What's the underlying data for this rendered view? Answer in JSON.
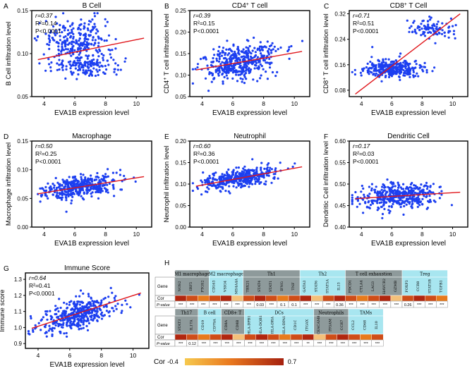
{
  "x_label": "EVA1B expression level",
  "x_ticks": [
    "4",
    "6",
    "8",
    "10"
  ],
  "panels": [
    {
      "letter": "A",
      "title": "B Cell",
      "title_sup": "",
      "ylabel": "B Cell infiltration level",
      "ylabel_sup": "",
      "stats": {
        "r": "r=0.37",
        "r2": "R²=0.14",
        "p": "P<0.0001"
      },
      "y_ticks": [
        "0.05",
        "0.10",
        "0.15"
      ],
      "data": {
        "xmin": 3.2,
        "xmax": 11,
        "ymin": 0.05,
        "ymax": 0.15,
        "cx": [
          6.2,
          6.6
        ],
        "cy": [
          0.115,
          0.085
        ],
        "sx": [
          1.1,
          1.1
        ],
        "sy": [
          0.012,
          0.007
        ],
        "frac": [
          0.65,
          0.35
        ],
        "fit": [
          0.093,
          0.118
        ]
      }
    },
    {
      "letter": "B",
      "title": "CD4",
      "title_sup": "+",
      "title_after": " T cell",
      "ylabel": "CD4",
      "ylabel_sup": "+",
      "ylabel_after": " T cell infiltration level",
      "stats": {
        "r": "r=0.39",
        "r2": "R²=0.15",
        "p": "P<0.0001"
      },
      "y_ticks": [
        "0.05",
        "0.10",
        "0.15",
        "0.20",
        "0.25"
      ],
      "data": {
        "xmin": 3.2,
        "xmax": 11,
        "ymin": 0.05,
        "ymax": 0.25,
        "cx": [
          6.4,
          6.4
        ],
        "cy": [
          0.135,
          0.135
        ],
        "sx": [
          1.2,
          1.2
        ],
        "sy": [
          0.018,
          0.018
        ],
        "frac": [
          0.5,
          0.5
        ],
        "fit": [
          0.112,
          0.155
        ]
      }
    },
    {
      "letter": "C",
      "title": "CD8",
      "title_sup": "+",
      "title_after": " T Cell",
      "ylabel": "CD8",
      "ylabel_sup": "+",
      "ylabel_after": " T cell infiltration level",
      "stats": {
        "r": "r=0.71",
        "r2": "R²=0.51",
        "p": "P<0.0001"
      },
      "y_ticks": [
        "0.08",
        "0.16",
        "0.24",
        "0.32"
      ],
      "data": {
        "xmin": 3.2,
        "xmax": 11,
        "ymin": 0.06,
        "ymax": 0.33,
        "cx": [
          6.0,
          8.6
        ],
        "cy": [
          0.148,
          0.275
        ],
        "sx": [
          1.0,
          0.8
        ],
        "sy": [
          0.013,
          0.015
        ],
        "frac": [
          0.75,
          0.25
        ],
        "fit": [
          0.068,
          0.32
        ]
      }
    },
    {
      "letter": "D",
      "title": "Macrophage",
      "title_sup": "",
      "ylabel": "Macrophage infiltration level",
      "ylabel_sup": "",
      "stats": {
        "r": "r=0.50",
        "r2": "R²=0.25",
        "p": "P<0.0001"
      },
      "y_ticks": [
        "0.00",
        "0.05",
        "0.10",
        "0.15"
      ],
      "data": {
        "xmin": 3.2,
        "xmax": 11,
        "ymin": 0.0,
        "ymax": 0.15,
        "cx": [
          6.4,
          6.4
        ],
        "cy": [
          0.072,
          0.072
        ],
        "sx": [
          1.2,
          1.2
        ],
        "sy": [
          0.009,
          0.009
        ],
        "frac": [
          0.5,
          0.5
        ],
        "fit": [
          0.058,
          0.088
        ]
      }
    },
    {
      "letter": "E",
      "title": "Neutrophil",
      "title_sup": "",
      "ylabel": "Neutrophil infiltration level",
      "ylabel_sup": "",
      "stats": {
        "r": "r=0.60",
        "r2": "R²=0.36",
        "p": "P<0.0001"
      },
      "y_ticks": [
        "0.00",
        "0.05",
        "0.10",
        "0.15",
        "0.20"
      ],
      "data": {
        "xmin": 3.2,
        "xmax": 11,
        "ymin": 0.0,
        "ymax": 0.2,
        "cx": [
          6.4,
          6.4
        ],
        "cy": [
          0.118,
          0.118
        ],
        "sx": [
          1.2,
          1.2
        ],
        "sy": [
          0.011,
          0.011
        ],
        "frac": [
          0.5,
          0.5
        ],
        "fit": [
          0.095,
          0.14
        ]
      }
    },
    {
      "letter": "F",
      "title": "Dendritic Cell",
      "title_sup": "",
      "ylabel": "Dendritic Cell infiltration level",
      "ylabel_sup": "",
      "stats": {
        "r": "r=0.17",
        "r2": "R²=0.03",
        "p": "P<0.0001"
      },
      "y_ticks": [
        "0.40",
        "0.45",
        "0.50",
        "0.55",
        "0.60"
      ],
      "data": {
        "xmin": 3.2,
        "xmax": 11,
        "ymin": 0.4,
        "ymax": 0.6,
        "cx": [
          6.4,
          6.4
        ],
        "cy": [
          0.472,
          0.472
        ],
        "sx": [
          1.2,
          1.2
        ],
        "sy": [
          0.014,
          0.014
        ],
        "frac": [
          0.5,
          0.5
        ],
        "fit": [
          0.466,
          0.481
        ]
      }
    },
    {
      "letter": "G",
      "title": "Immune Score",
      "title_sup": "",
      "ylabel": "Immune score",
      "ylabel_sup": "",
      "stats": {
        "r": "r=0.64",
        "r2": "R²=0.41",
        "p": "P<0.0001"
      },
      "y_ticks": [
        "0.9",
        "1.0",
        "1.1",
        "1.2",
        "1.3"
      ],
      "data": {
        "xmin": 3.2,
        "xmax": 11,
        "ymin": 0.87,
        "ymax": 1.34,
        "cx": [
          6.4,
          6.4
        ],
        "cy": [
          1.08,
          1.08
        ],
        "sx": [
          1.2,
          1.2
        ],
        "sy": [
          0.045,
          0.045
        ],
        "frac": [
          0.5,
          0.5
        ],
        "fit": [
          0.995,
          1.215
        ]
      }
    }
  ],
  "heatmap": {
    "letter": "H",
    "top_groups": [
      "M1 macrophage",
      "M2 macrophage",
      "Th1",
      "Th2",
      "T cell exhaustion",
      "Treg"
    ],
    "top_genes": [
      "NOS2",
      "IRF5",
      "PTGS2",
      "CD163",
      "VSIG4",
      "MS4A4A",
      "TBX21",
      "STAT4",
      "STAT1",
      "IFNG",
      "TNF",
      "GATA3",
      "STAT6",
      "STAT5A",
      "IL13",
      "PDCD1",
      "CTLA4",
      "LAG3",
      "HAVCR2",
      "GZMB",
      "FOXP3",
      "CCR8",
      "STAT5B",
      "TGFB1"
    ],
    "top_p": [
      "***",
      "***",
      "***",
      "***",
      "***",
      "***",
      "***",
      "0.03",
      "***",
      "0.1",
      "0.1",
      "***",
      "***",
      "***",
      "0.36",
      "***",
      "***",
      "***",
      "***",
      "***",
      "0.26",
      "***",
      "***",
      "***"
    ],
    "bottom_groups": [
      "Th17",
      "B cell",
      "CD8+ T",
      "DCs",
      "Neutrophils",
      "TAMs"
    ],
    "bottom_genes": [
      "STAT3",
      "IL17A",
      "CD19",
      "CD79A",
      "CD8A",
      "CD8B",
      "HLA-DPB1",
      "HLA-DQB1",
      "HLA-DRA",
      "HLA-DPA1",
      "CD1C",
      "ITGAX",
      "CEACAM8",
      "ITGAM",
      "CCR7",
      "CCL2",
      "CD68",
      "IL10"
    ],
    "bottom_p": [
      "***",
      "0.12",
      "***",
      "***",
      "***",
      "***",
      "***",
      "***",
      "***",
      "***",
      "***",
      "**",
      "***",
      "***",
      "***",
      "***",
      "***",
      "***"
    ],
    "row_gene": "Gene",
    "row_cor": "Cor",
    "row_p": "P-value",
    "legend": {
      "label": "Cor",
      "min": "-0.4",
      "max": "0.7"
    },
    "colors": {
      "group_dark": "#8e9a9b",
      "group_light": "#a8e6f0",
      "cell_dark": "#b1260f",
      "cell_mid": "#cf4d18",
      "cell_light": "#e77a1c",
      "cell_pale": "#f4c07a"
    }
  }
}
